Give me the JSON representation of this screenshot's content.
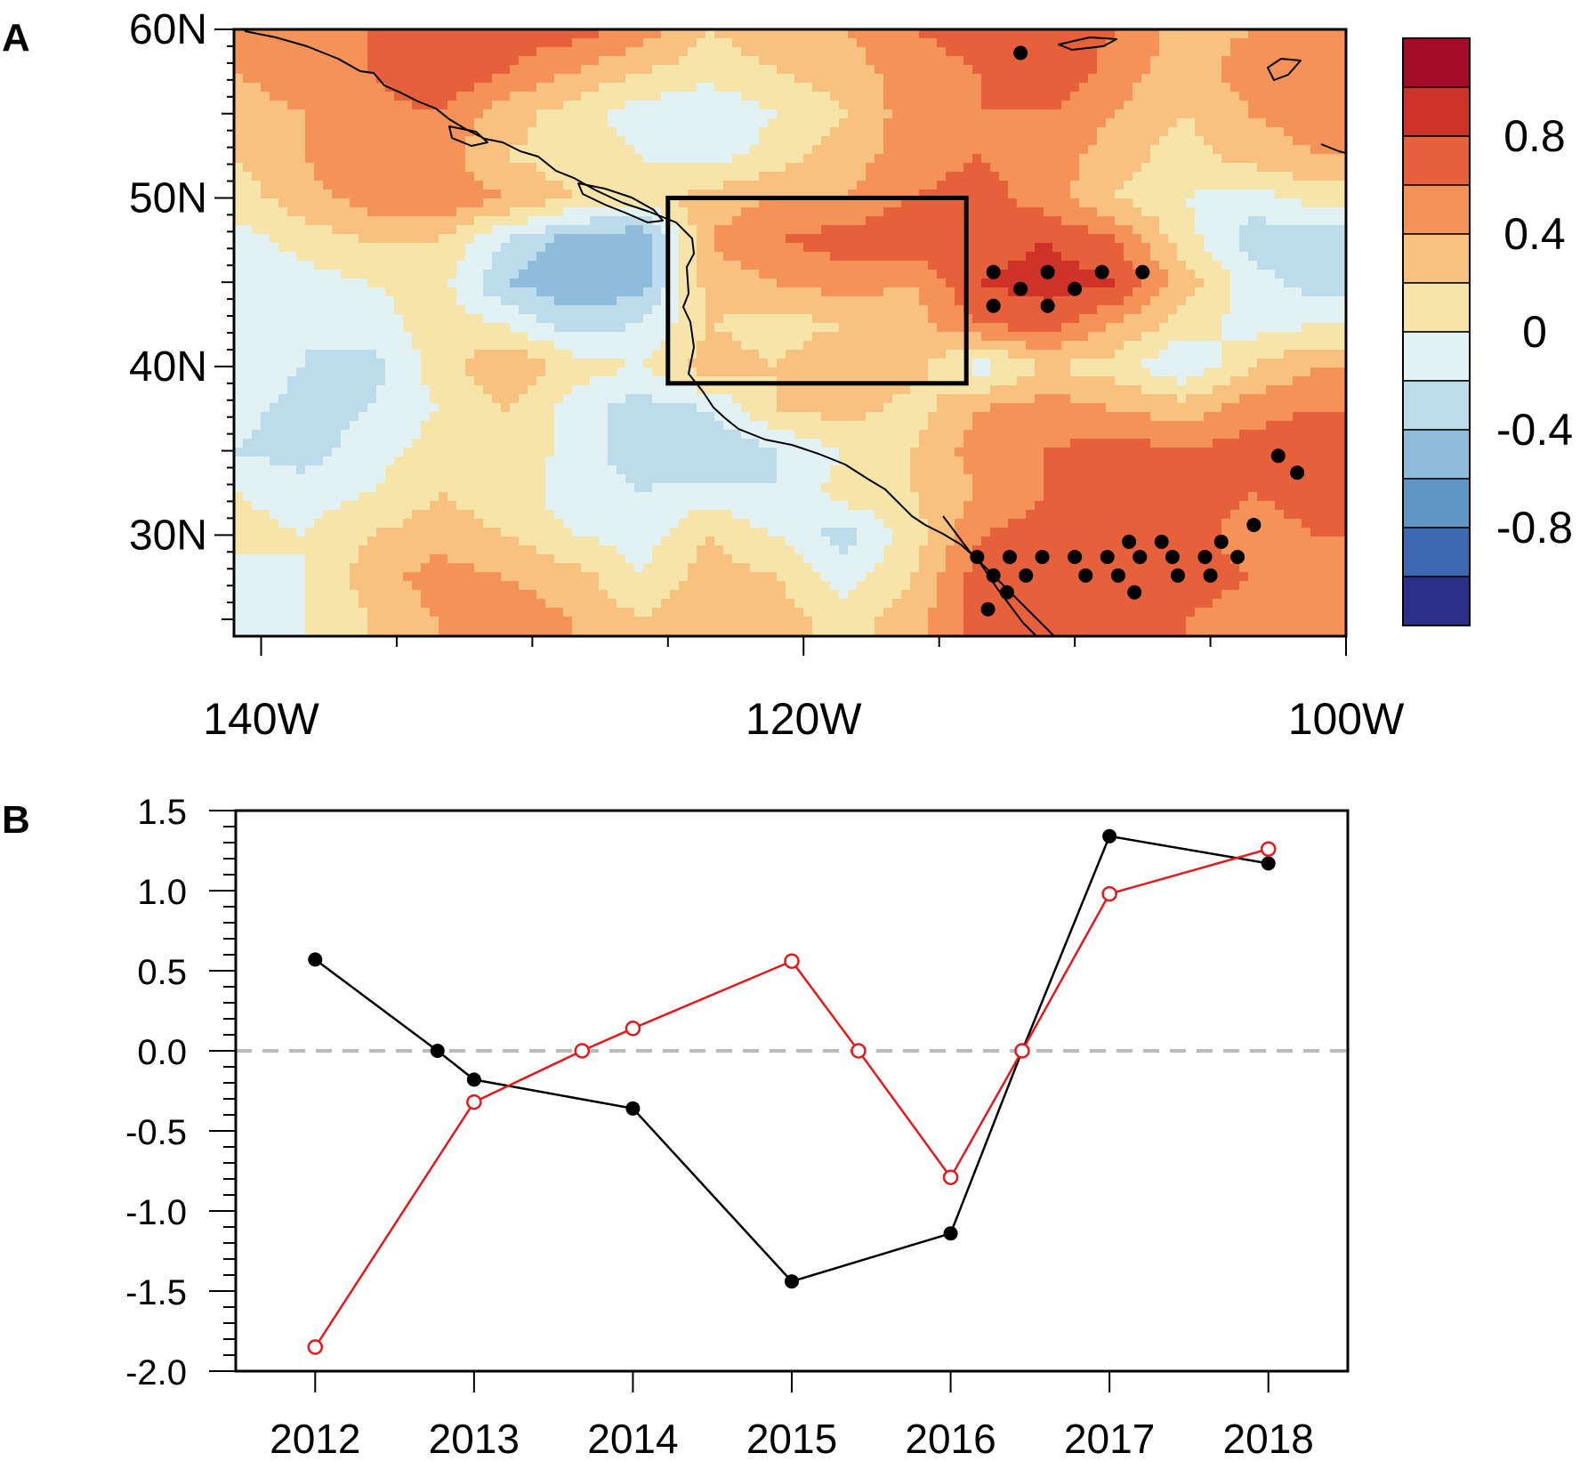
{
  "chart_data": [
    {
      "type": "heatmap",
      "panel_label": "A",
      "title": "",
      "lat_ticks": [
        "60N",
        "50N",
        "40N",
        "30N"
      ],
      "lat_values": [
        60,
        50,
        40,
        30
      ],
      "lon_ticks": [
        "140W",
        "120W",
        "100W"
      ],
      "lon_values": [
        -140,
        -120,
        -100
      ],
      "lon_range": [
        -141,
        -100
      ],
      "lat_range": [
        24,
        60
      ],
      "colorbar": {
        "labels": [
          "0.8",
          "0.4",
          "0",
          "-0.4",
          "-0.8"
        ],
        "label_values": [
          0.8,
          0.4,
          0,
          -0.4,
          -0.8
        ],
        "levels": [
          -1.2,
          -1.0,
          -0.8,
          -0.6,
          -0.4,
          -0.2,
          0,
          0.2,
          0.4,
          0.6,
          0.8,
          1.0,
          1.2
        ],
        "colors": [
          "#2b2f8a",
          "#3d68b2",
          "#5f96c8",
          "#8fbcdb",
          "#bcdcec",
          "#e2f1f3",
          "#f6e4a9",
          "#f9c17f",
          "#f49257",
          "#e5603b",
          "#cf3327",
          "#a30d26"
        ]
      },
      "box_region": {
        "lon": [
          -125,
          -114
        ],
        "lat": [
          39,
          50
        ]
      },
      "grid_lon": [
        -141,
        -138.5,
        -136,
        -133.5,
        -131,
        -128.5,
        -126,
        -123.5,
        -121,
        -118.5,
        -116,
        -113.5,
        -111,
        -108.5,
        -106,
        -103.5,
        -101
      ],
      "grid_lat": [
        60,
        57.5,
        55,
        52.5,
        50,
        47.5,
        45,
        42.5,
        40,
        37.5,
        35,
        32.5,
        30,
        27.5,
        25
      ],
      "grid_values": [
        [
          0.5,
          0.6,
          0.6,
          0.7,
          0.7,
          0.7,
          0.5,
          0.2,
          0.3,
          0.4,
          0.6,
          0.7,
          0.8,
          0.6,
          0.3,
          0.4,
          0.5
        ],
        [
          0.4,
          0.5,
          0.6,
          0.8,
          0.6,
          0.4,
          0.2,
          0.1,
          0.2,
          0.3,
          0.5,
          0.6,
          0.8,
          0.5,
          0.3,
          0.5,
          0.6
        ],
        [
          0.3,
          0.4,
          0.5,
          0.6,
          0.3,
          0.1,
          -0.1,
          -0.2,
          0.0,
          0.2,
          0.5,
          0.6,
          0.6,
          0.4,
          0.2,
          0.4,
          0.5
        ],
        [
          0.2,
          0.4,
          0.6,
          0.5,
          0.2,
          0.1,
          0.0,
          -0.1,
          0.1,
          0.3,
          0.5,
          0.6,
          0.5,
          0.3,
          0.1,
          0.3,
          0.4
        ],
        [
          0.1,
          0.3,
          0.5,
          0.6,
          0.4,
          0.2,
          0.1,
          0.3,
          0.4,
          0.4,
          0.6,
          0.7,
          0.5,
          0.2,
          0.0,
          -0.1,
          0.1
        ],
        [
          -0.1,
          0.1,
          0.2,
          0.2,
          -0.2,
          -0.5,
          -0.6,
          0.4,
          0.6,
          0.7,
          0.8,
          0.7,
          0.8,
          0.6,
          0.1,
          -0.3,
          -0.4
        ],
        [
          -0.2,
          -0.1,
          0.0,
          0.1,
          -0.4,
          -0.6,
          -0.5,
          0.3,
          0.4,
          0.5,
          0.4,
          0.8,
          0.9,
          0.8,
          0.3,
          -0.1,
          -0.3
        ],
        [
          -0.1,
          -0.2,
          -0.1,
          0.1,
          0.0,
          -0.3,
          -0.2,
          0.2,
          0.1,
          0.2,
          0.3,
          0.6,
          0.7,
          0.4,
          0.1,
          -0.1,
          0.0
        ],
        [
          0.0,
          -0.2,
          -0.3,
          0.1,
          0.4,
          0.1,
          0.0,
          0.3,
          0.2,
          0.4,
          0.3,
          -0.1,
          0.2,
          0.1,
          -0.2,
          0.2,
          0.4
        ],
        [
          -0.1,
          -0.3,
          -0.2,
          0.0,
          0.2,
          -0.1,
          -0.3,
          -0.2,
          0.2,
          0.3,
          0.1,
          0.4,
          0.5,
          0.4,
          0.3,
          0.5,
          0.6
        ],
        [
          -0.2,
          -0.3,
          -0.1,
          0.1,
          0.2,
          -0.1,
          -0.3,
          -0.4,
          -0.2,
          0.0,
          0.2,
          0.5,
          0.6,
          0.7,
          0.6,
          0.7,
          0.8
        ],
        [
          0.0,
          -0.1,
          0.0,
          0.2,
          0.1,
          -0.1,
          -0.2,
          -0.1,
          -0.2,
          0.1,
          0.2,
          0.4,
          0.6,
          0.7,
          0.7,
          0.6,
          0.7
        ],
        [
          0.1,
          0.0,
          0.2,
          0.3,
          0.2,
          0.0,
          -0.1,
          0.2,
          0.0,
          -0.3,
          0.1,
          0.6,
          0.7,
          0.8,
          0.7,
          0.5,
          0.6
        ],
        [
          -0.1,
          0.0,
          0.3,
          0.5,
          0.4,
          0.3,
          0.0,
          0.3,
          0.2,
          -0.1,
          0.2,
          0.7,
          0.7,
          0.8,
          0.7,
          0.6,
          0.6
        ],
        [
          -0.2,
          0.0,
          0.2,
          0.4,
          0.5,
          0.4,
          0.2,
          0.4,
          0.3,
          0.1,
          0.3,
          0.7,
          0.6,
          0.7,
          0.6,
          0.5,
          0.5
        ]
      ],
      "significance_points": [
        {
          "lon": -112,
          "lat": 58.6
        },
        {
          "lon": -113,
          "lat": 45.6
        },
        {
          "lon": -112,
          "lat": 44.6
        },
        {
          "lon": -111,
          "lat": 45.6
        },
        {
          "lon": -110,
          "lat": 44.6
        },
        {
          "lon": -109,
          "lat": 45.6
        },
        {
          "lon": -107.5,
          "lat": 45.6
        },
        {
          "lon": -113,
          "lat": 43.6
        },
        {
          "lon": -111,
          "lat": 43.6
        },
        {
          "lon": -102.5,
          "lat": 34.7
        },
        {
          "lon": -101.8,
          "lat": 33.7
        },
        {
          "lon": -113.6,
          "lat": 28.7
        },
        {
          "lon": -112.4,
          "lat": 28.7
        },
        {
          "lon": -111.2,
          "lat": 28.7
        },
        {
          "lon": -110,
          "lat": 28.7
        },
        {
          "lon": -108.8,
          "lat": 28.7
        },
        {
          "lon": -107.6,
          "lat": 28.7
        },
        {
          "lon": -106.4,
          "lat": 28.7
        },
        {
          "lon": -105.2,
          "lat": 28.7
        },
        {
          "lon": -104,
          "lat": 28.7
        },
        {
          "lon": -108,
          "lat": 29.6
        },
        {
          "lon": -106.8,
          "lat": 29.6
        },
        {
          "lon": -104.6,
          "lat": 29.6
        },
        {
          "lon": -103.4,
          "lat": 30.6
        },
        {
          "lon": -113,
          "lat": 27.6
        },
        {
          "lon": -111.8,
          "lat": 27.6
        },
        {
          "lon": -109.6,
          "lat": 27.6
        },
        {
          "lon": -108.4,
          "lat": 27.6
        },
        {
          "lon": -106.2,
          "lat": 27.6
        },
        {
          "lon": -105,
          "lat": 27.6
        },
        {
          "lon": -112.5,
          "lat": 26.6
        },
        {
          "lon": -107.8,
          "lat": 26.6
        },
        {
          "lon": -113.2,
          "lat": 25.6
        }
      ]
    },
    {
      "type": "line",
      "panel_label": "B",
      "title": "",
      "xlabel": "",
      "ylabel": "",
      "x_ticks": [
        "2012",
        "2013",
        "2014",
        "2015",
        "2016",
        "2017",
        "2018"
      ],
      "x_tick_values": [
        2012,
        2013,
        2014,
        2015,
        2016,
        2017,
        2018
      ],
      "xlim": [
        2011.5,
        2018.5
      ],
      "y_ticks": [
        "1.5",
        "1.0",
        "0.5",
        "0.0",
        "-0.5",
        "-1.0",
        "-1.5",
        "-2.0"
      ],
      "y_tick_values": [
        1.5,
        1.0,
        0.5,
        0.0,
        -0.5,
        -1.0,
        -1.5,
        -2.0
      ],
      "ylim": [
        -2.0,
        1.5
      ],
      "reference_line": {
        "y": 0.0,
        "style": "dashed",
        "color": "#bbbbbb"
      },
      "series": [
        {
          "name": "black",
          "color": "#000000",
          "marker": "filled-circle",
          "x": [
            2012.0,
            2012.77,
            2013.0,
            2014.0,
            2015.0,
            2016.0,
            2016.45,
            2017.0,
            2018.0
          ],
          "y": [
            0.57,
            0.0,
            -0.18,
            -0.36,
            -1.44,
            -1.14,
            0.0,
            1.34,
            1.17
          ]
        },
        {
          "name": "red",
          "color": "#e31a1c",
          "marker": "open-circle",
          "x": [
            2012.0,
            2013.0,
            2013.68,
            2014.0,
            2015.0,
            2015.42,
            2016.0,
            2016.45,
            2017.0,
            2018.0
          ],
          "y": [
            -1.85,
            -0.32,
            0.0,
            0.14,
            0.56,
            0.0,
            -0.79,
            0.0,
            0.98,
            1.26
          ]
        }
      ]
    }
  ]
}
